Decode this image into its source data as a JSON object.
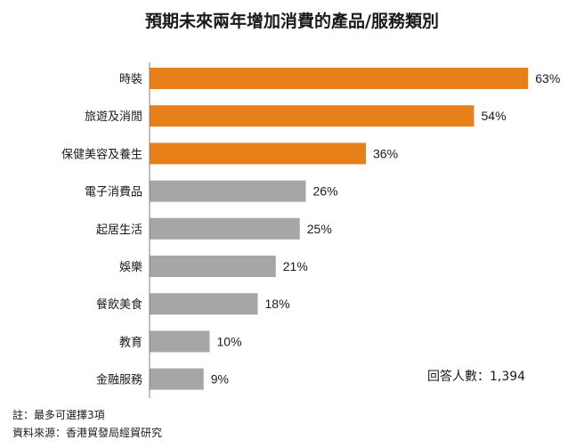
{
  "chart_data": {
    "type": "bar",
    "orientation": "horizontal",
    "title": "預期未來兩年增加消費的產品/服務類別",
    "categories": [
      "時裝",
      "旅遊及消閒",
      "保健美容及養生",
      "電子消費品",
      "起居生活",
      "娛樂",
      "餐飲美食",
      "教育",
      "金融服務"
    ],
    "values": [
      63,
      54,
      36,
      26,
      25,
      21,
      18,
      10,
      9
    ],
    "value_labels": [
      "63%",
      "54%",
      "36%",
      "26%",
      "25%",
      "21%",
      "18%",
      "10%",
      "9%"
    ],
    "unit": "%",
    "highlight_count": 3,
    "colors": {
      "highlight": "#e8801a",
      "normal": "#a6a6a6",
      "axis": "#7f7f7f"
    },
    "xlim": [
      0,
      100
    ],
    "grid": false,
    "respondents": "回答人數：1,394"
  },
  "notes": {
    "note": "註：最多可選擇3項",
    "source": "資料來源：香港貿發局經貿研究"
  }
}
